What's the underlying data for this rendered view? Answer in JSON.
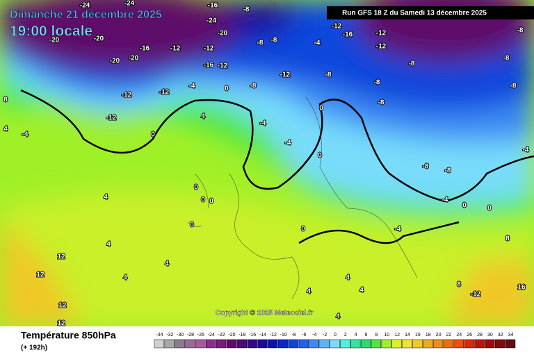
{
  "header": {
    "date": "Dimanche 21 décembre 2025",
    "time": "19:00 locale",
    "run": "Run GFS 18 Z du Samedi 13 décembre 2025"
  },
  "map": {
    "labels": [
      "-24",
      "-24",
      "-16",
      "-8",
      "-24",
      "-20",
      "-12",
      "-16",
      "-12",
      "-8",
      "-20",
      "-20",
      "-16",
      "-12",
      "-12",
      "-8",
      "-8",
      "-4",
      "-12",
      "-20",
      "-20",
      "-16",
      "-12",
      "-12",
      "-8",
      "-8",
      "-8",
      "-12",
      "-12",
      "-4",
      "0",
      "-8",
      "-8",
      "-8",
      "8",
      "0",
      "-8",
      "-12",
      "4",
      "-4",
      "4",
      "-4",
      "0",
      "-4",
      "0",
      "-8",
      "-8",
      "-4",
      "0",
      "0",
      "0",
      "4",
      "-4",
      "0",
      "0",
      "0",
      "0",
      "4",
      "-4",
      "8",
      "12",
      "12",
      "4",
      "4",
      "4",
      "4",
      "8",
      "-12",
      "16",
      "12",
      "12",
      "4",
      "4"
    ],
    "copyright": "Copyright © 2025 Meteociel.fr"
  },
  "footer": {
    "title": "Température 850hPa",
    "subtitle": "(+ 192h)"
  },
  "scale": {
    "ticks": [
      -34,
      -32,
      -30,
      -28,
      -26,
      -24,
      -22,
      -20,
      -18,
      -16,
      -14,
      -12,
      -10,
      -8,
      -6,
      -4,
      -2,
      0,
      2,
      4,
      6,
      8,
      10,
      12,
      14,
      16,
      18,
      20,
      22,
      24,
      26,
      28,
      30,
      32,
      34
    ],
    "colors": [
      "#d0d0d0",
      "#a8a8a8",
      "#8a7d8a",
      "#9a6b95",
      "#a85aa0",
      "#8c2f8c",
      "#7a1a7a",
      "#5e0a6a",
      "#4a0a78",
      "#2e0a8a",
      "#1a0aa0",
      "#0a14b4",
      "#0a28c8",
      "#0a46dc",
      "#1e64ec",
      "#3c8cf4",
      "#5ab4fa",
      "#78dcfa",
      "#50f0dc",
      "#32e6a0",
      "#28dc6e",
      "#50e640",
      "#a0f028",
      "#dcf028",
      "#f0e632",
      "#f0c828",
      "#f0aa1e",
      "#f08c14",
      "#f06e0a",
      "#f04e0a",
      "#dc280a",
      "#be140a",
      "#a00a0a",
      "#820a0a",
      "#640a14"
    ]
  }
}
